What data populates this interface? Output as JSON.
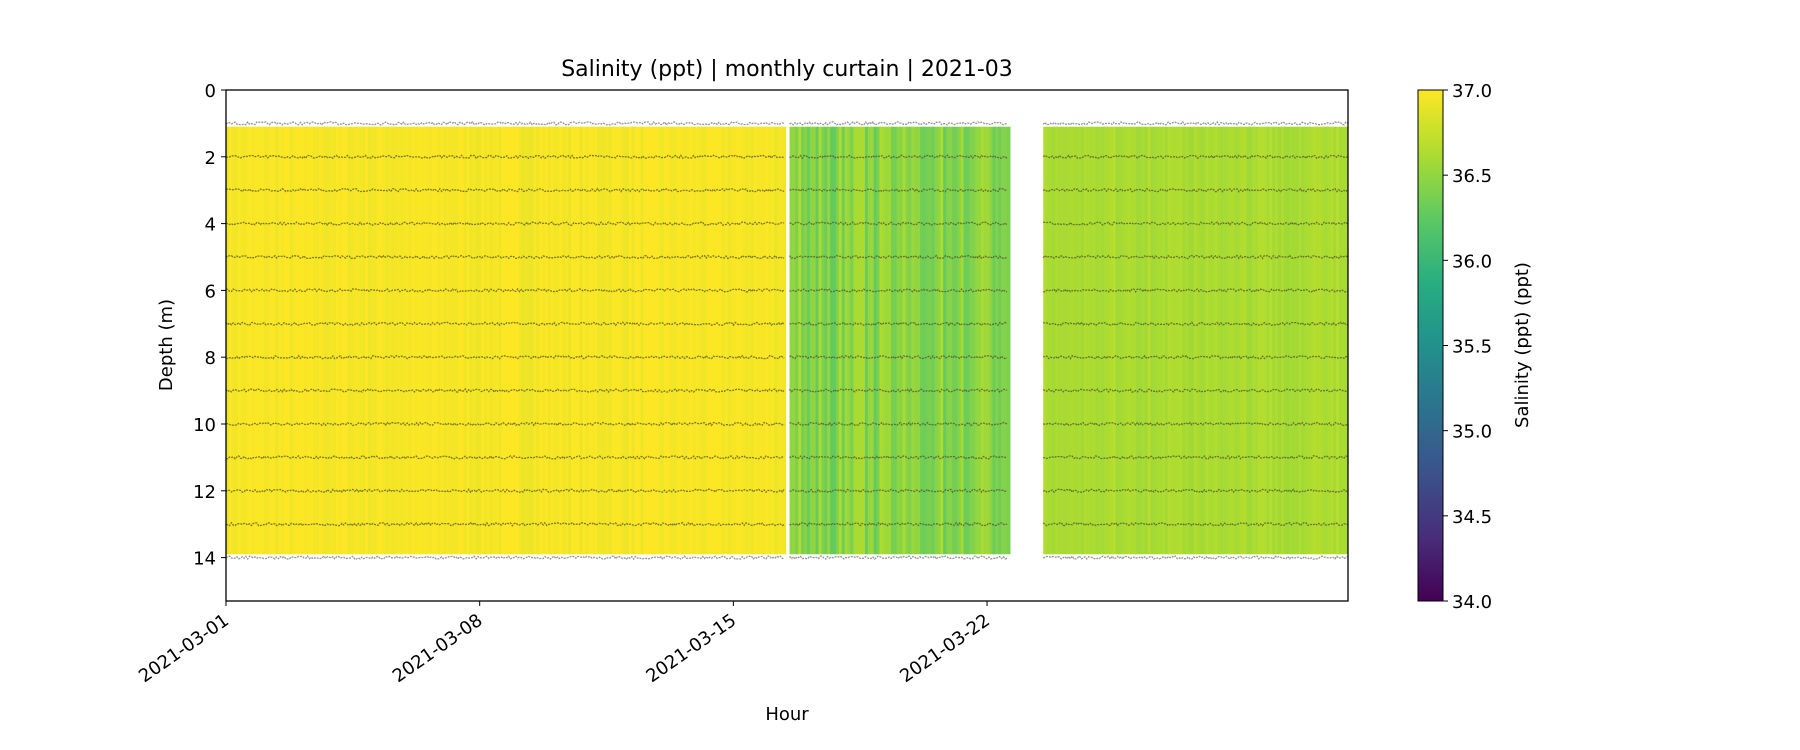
{
  "chart_data": {
    "type": "heatmap",
    "title": "Salinity (ppt) | monthly curtain | 2021-03",
    "xlabel": "Hour",
    "ylabel": "Depth (m)",
    "x_unit": "days since 2021-03-01",
    "xlim": [
      0,
      30.96
    ],
    "ylim": [
      15.3,
      0
    ],
    "x_ticks": [
      {
        "value": 0,
        "label": "2021-03-01"
      },
      {
        "value": 7,
        "label": "2021-03-08"
      },
      {
        "value": 14,
        "label": "2021-03-15"
      },
      {
        "value": 21,
        "label": "2021-03-22"
      }
    ],
    "y_ticks": [
      0,
      2,
      4,
      6,
      8,
      10,
      12,
      14
    ],
    "sensor_depths": [
      1,
      2,
      3,
      4,
      5,
      6,
      7,
      8,
      9,
      10,
      11,
      12,
      13,
      14
    ],
    "segments": [
      {
        "start": 0,
        "end": 15.43,
        "depth_top": 1.1,
        "depth_bottom": 13.9,
        "mean_salinity": 36.97,
        "variability": 0.05
      },
      {
        "start": 15.55,
        "end": 21.6,
        "depth_top": 1.1,
        "depth_bottom": 13.9,
        "mean_salinity": 36.45,
        "variability": 0.18
      },
      {
        "start": 22.55,
        "end": 30.96,
        "depth_top": 1.1,
        "depth_bottom": 13.9,
        "mean_salinity": 36.62,
        "variability": 0.06
      }
    ],
    "colorbar": {
      "label": "Salinity (ppt) (ppt)",
      "colormap": "viridis",
      "range": [
        34.0,
        37.0
      ],
      "ticks": [
        "37.0",
        "36.5",
        "36.0",
        "35.5",
        "35.0",
        "34.5",
        "34.0"
      ]
    }
  }
}
